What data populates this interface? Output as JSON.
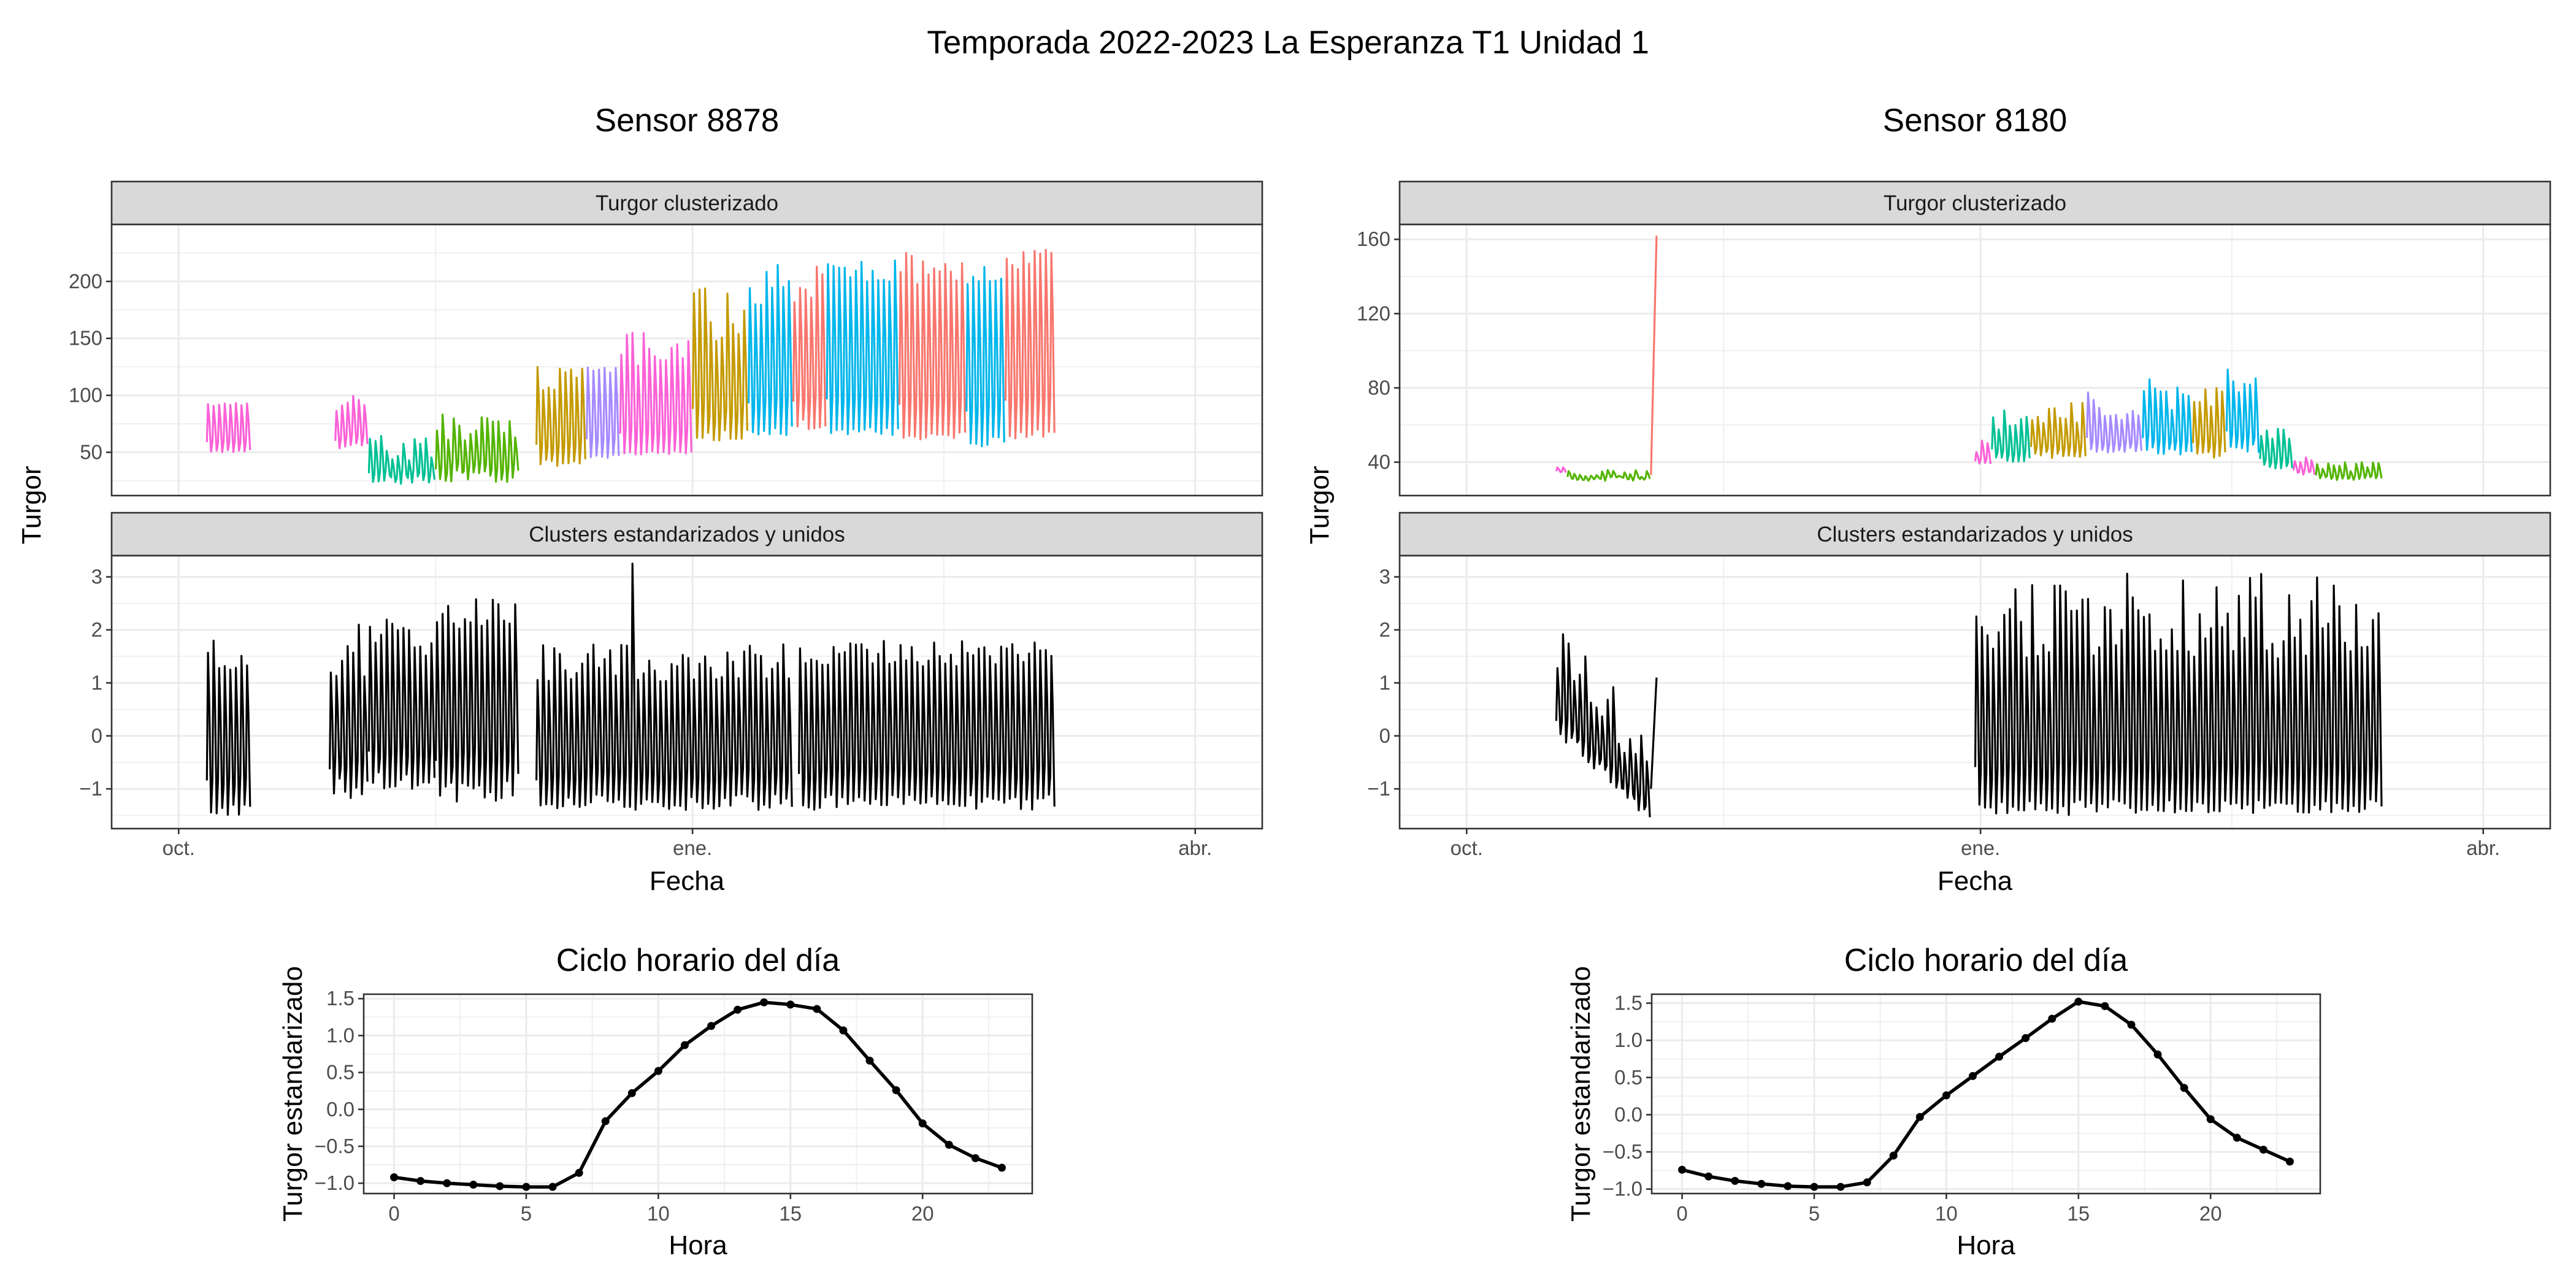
{
  "title": "Temporada 2022-2023 La Esperanza T1 Unidad 1",
  "strip_labels": {
    "top": "Turgor clusterizado",
    "bottom": "Clusters estandarizados y unidos"
  },
  "colors": {
    "pink": "#F8766D",
    "orange": "#C49A00",
    "green": "#53B400",
    "teal": "#00C094",
    "cyan": "#00B6EB",
    "purple": "#A58AFF",
    "magenta": "#FB61D7",
    "black": "#000000"
  },
  "chart_data": [
    {
      "type": "line",
      "title": "Sensor 8878",
      "xlabel": "Fecha",
      "ylabel": "Turgor",
      "x_axis": {
        "type": "date",
        "ticks": [
          {
            "date": "2022-10-01",
            "label": "oct."
          },
          {
            "date": "2023-01-01",
            "label": "ene."
          },
          {
            "date": "2023-04-01",
            "label": "abr."
          }
        ],
        "xlim": [
          "2022-09-19",
          "2023-04-13"
        ]
      },
      "grid": true,
      "legend": "none",
      "panels": [
        {
          "strip": "Turgor clusterizado",
          "ylim": [
            12,
            250
          ],
          "yticks": [
            50,
            100,
            150,
            200
          ],
          "series_summary": [
            {
              "start": "2022-10-06",
              "end": "2022-10-14",
              "color": "magenta",
              "min": [
                50,
                52
              ],
              "max": [
                90,
                95
              ]
            },
            {
              "start": "2022-10-29",
              "end": "2022-11-04",
              "color": "magenta",
              "min": [
                52,
                58
              ],
              "max": [
                85,
                100
              ]
            },
            {
              "start": "2022-11-04",
              "end": "2022-11-16",
              "color": "teal",
              "min": [
                22,
                30
              ],
              "max": [
                40,
                70
              ]
            },
            {
              "start": "2022-11-16",
              "end": "2022-12-01",
              "color": "green",
              "min": [
                24,
                34
              ],
              "max": [
                60,
                85
              ]
            },
            {
              "start": "2022-12-04",
              "end": "2022-12-13",
              "color": "orange",
              "min": [
                38,
                44
              ],
              "max": [
                100,
                125
              ]
            },
            {
              "start": "2022-12-13",
              "end": "2022-12-19",
              "color": "purple",
              "min": [
                45,
                48
              ],
              "max": [
                115,
                130
              ]
            },
            {
              "start": "2022-12-19",
              "end": "2023-01-01",
              "color": "magenta",
              "min": [
                48,
                52
              ],
              "max": [
                125,
                165
              ]
            },
            {
              "start": "2023-01-01",
              "end": "2023-01-11",
              "color": "orange",
              "min": [
                60,
                70
              ],
              "max": [
                140,
                195
              ]
            },
            {
              "start": "2023-01-11",
              "end": "2023-01-19",
              "color": "cyan",
              "min": [
                65,
                75
              ],
              "max": [
                170,
                215
              ]
            },
            {
              "start": "2023-01-19",
              "end": "2023-01-25",
              "color": "pink",
              "min": [
                70,
                80
              ],
              "max": [
                175,
                215
              ]
            },
            {
              "start": "2023-01-25",
              "end": "2023-02-07",
              "color": "cyan",
              "min": [
                65,
                72
              ],
              "max": [
                195,
                220
              ]
            },
            {
              "start": "2023-02-07",
              "end": "2023-02-19",
              "color": "pink",
              "min": [
                60,
                70
              ],
              "max": [
                195,
                225
              ]
            },
            {
              "start": "2023-02-19",
              "end": "2023-02-26",
              "color": "cyan",
              "min": [
                55,
                65
              ],
              "max": [
                195,
                230
              ]
            },
            {
              "start": "2023-02-26",
              "end": "2023-03-07",
              "color": "pink",
              "min": [
                62,
                70
              ],
              "max": [
                200,
                228
              ]
            }
          ]
        },
        {
          "strip": "Clusters estandarizados y unidos",
          "ylim": [
            -1.75,
            3.4
          ],
          "yticks": [
            -1,
            0,
            1,
            2,
            3
          ],
          "series_summary": [
            {
              "start": "2022-10-06",
              "end": "2022-10-14",
              "color": "black",
              "min": [
                -1.5,
                -1.3
              ],
              "max": [
                1.2,
                1.9
              ]
            },
            {
              "start": "2022-10-28",
              "end": "2022-11-04",
              "color": "black",
              "min": [
                -1.2,
                -0.8
              ],
              "max": [
                1.0,
                2.2
              ]
            },
            {
              "start": "2022-11-04",
              "end": "2022-11-16",
              "color": "black",
              "min": [
                -1.0,
                -0.6
              ],
              "max": [
                1.5,
                2.2
              ]
            },
            {
              "start": "2022-11-16",
              "end": "2022-12-01",
              "color": "black",
              "min": [
                -1.3,
                -0.7
              ],
              "max": [
                1.8,
                2.6
              ]
            },
            {
              "start": "2022-12-04",
              "end": "2023-01-19",
              "color": "black",
              "min": [
                -1.4,
                -1.1
              ],
              "max": [
                1.0,
                1.8
              ],
              "spike": {
                "date": "2022-12-21",
                "value": 3.25
              }
            },
            {
              "start": "2023-01-20",
              "end": "2023-03-07",
              "color": "black",
              "min": [
                -1.4,
                -1.1
              ],
              "max": [
                1.3,
                1.8
              ]
            }
          ]
        }
      ]
    },
    {
      "type": "line",
      "title": "Sensor 8180",
      "xlabel": "Fecha",
      "ylabel": "Turgor",
      "x_axis": {
        "type": "date",
        "ticks": [
          {
            "date": "2022-10-01",
            "label": "oct."
          },
          {
            "date": "2023-01-01",
            "label": "ene."
          },
          {
            "date": "2023-04-01",
            "label": "abr."
          }
        ],
        "xlim": [
          "2022-09-19",
          "2023-04-13"
        ]
      },
      "grid": true,
      "legend": "none",
      "panels": [
        {
          "strip": "Turgor clusterizado",
          "ylim": [
            22,
            168
          ],
          "yticks": [
            40,
            80,
            120,
            160
          ],
          "series_summary": [
            {
              "start": "2022-10-17",
              "end": "2022-10-19",
              "color": "magenta",
              "min": [
                34,
                35
              ],
              "max": [
                37,
                38
              ]
            },
            {
              "start": "2022-10-19",
              "end": "2022-11-03",
              "color": "green",
              "min": [
                30,
                32
              ],
              "max": [
                32,
                36
              ]
            },
            {
              "start": "2022-11-03",
              "end": "2022-11-04",
              "color": "pink",
              "jump": [
                33,
                162
              ]
            },
            {
              "start": "2022-12-31",
              "end": "2023-01-03",
              "color": "magenta",
              "min": [
                38,
                40
              ],
              "max": [
                45,
                52
              ]
            },
            {
              "start": "2023-01-03",
              "end": "2023-01-10",
              "color": "teal",
              "min": [
                40,
                44
              ],
              "max": [
                55,
                68
              ]
            },
            {
              "start": "2023-01-10",
              "end": "2023-01-20",
              "color": "orange",
              "min": [
                42,
                46
              ],
              "max": [
                58,
                72
              ]
            },
            {
              "start": "2023-01-20",
              "end": "2023-01-30",
              "color": "purple",
              "min": [
                45,
                48
              ],
              "max": [
                62,
                78
              ]
            },
            {
              "start": "2023-01-30",
              "end": "2023-02-08",
              "color": "cyan",
              "min": [
                44,
                48
              ],
              "max": [
                68,
                85
              ]
            },
            {
              "start": "2023-02-08",
              "end": "2023-02-14",
              "color": "orange",
              "min": [
                42,
                46
              ],
              "max": [
                70,
                80
              ]
            },
            {
              "start": "2023-02-14",
              "end": "2023-02-20",
              "color": "cyan",
              "min": [
                45,
                50
              ],
              "max": [
                75,
                92
              ]
            },
            {
              "start": "2023-02-20",
              "end": "2023-02-26",
              "color": "teal",
              "min": [
                36,
                40
              ],
              "max": [
                48,
                60
              ]
            },
            {
              "start": "2023-02-26",
              "end": "2023-03-02",
              "color": "magenta",
              "min": [
                33,
                35
              ],
              "max": [
                40,
                44
              ]
            },
            {
              "start": "2023-03-02",
              "end": "2023-03-14",
              "color": "green",
              "min": [
                30,
                32
              ],
              "max": [
                35,
                40
              ]
            }
          ]
        },
        {
          "strip": "Clusters estandarizados y unidos",
          "ylim": [
            -1.75,
            3.4
          ],
          "yticks": [
            -1,
            0,
            1,
            2,
            3
          ],
          "series_summary": [
            {
              "start": "2022-10-17",
              "end": "2022-11-03",
              "color": "black",
              "trend": {
                "from": [
                  0.2,
                  2.2
                ],
                "to": [
                  -1.4,
                  0.2
                ]
              }
            },
            {
              "start": "2022-11-03",
              "end": "2022-11-04",
              "color": "black",
              "jump": [
                -1.0,
                1.1
              ]
            },
            {
              "start": "2022-12-31",
              "end": "2023-03-14",
              "color": "black",
              "min": [
                -1.5,
                -1.2
              ],
              "max": [
                1.4,
                3.1
              ]
            }
          ]
        }
      ]
    },
    {
      "type": "line",
      "title": "Ciclo horario del día",
      "xlabel": "Hora",
      "ylabel": "Turgor estandarizado",
      "xlim": [
        -1.15,
        24.15
      ],
      "ylim": [
        -1.14,
        1.56
      ],
      "xticks": [
        0,
        5,
        10,
        15,
        20
      ],
      "yticks": [
        -1.0,
        -0.5,
        0.0,
        0.5,
        1.0,
        1.5
      ],
      "grid": true,
      "markers": true,
      "x": [
        0,
        1,
        2,
        3,
        4,
        5,
        6,
        7,
        8,
        9,
        10,
        11,
        12,
        13,
        14,
        15,
        16,
        17,
        18,
        19,
        20,
        21,
        22,
        23
      ],
      "y": [
        -0.92,
        -0.97,
        -1.0,
        -1.02,
        -1.04,
        -1.05,
        -1.05,
        -0.86,
        -0.16,
        0.22,
        0.52,
        0.87,
        1.13,
        1.35,
        1.45,
        1.42,
        1.36,
        1.07,
        0.66,
        0.26,
        -0.19,
        -0.48,
        -0.66,
        -0.79
      ]
    },
    {
      "type": "line",
      "title": "Ciclo horario del día",
      "xlabel": "Hora",
      "ylabel": "Turgor estandarizado",
      "xlim": [
        -1.15,
        24.15
      ],
      "ylim": [
        -1.06,
        1.62
      ],
      "xticks": [
        0,
        5,
        10,
        15,
        20
      ],
      "yticks": [
        -1.0,
        -0.5,
        0.0,
        0.5,
        1.0,
        1.5
      ],
      "grid": true,
      "markers": true,
      "x": [
        0,
        1,
        2,
        3,
        4,
        5,
        6,
        7,
        8,
        9,
        10,
        11,
        12,
        13,
        14,
        15,
        16,
        17,
        18,
        19,
        20,
        21,
        22,
        23
      ],
      "y": [
        -0.74,
        -0.83,
        -0.89,
        -0.93,
        -0.96,
        -0.97,
        -0.97,
        -0.91,
        -0.55,
        -0.03,
        0.26,
        0.52,
        0.78,
        1.03,
        1.29,
        1.52,
        1.46,
        1.21,
        0.81,
        0.36,
        -0.06,
        -0.31,
        -0.47,
        -0.63
      ]
    }
  ]
}
